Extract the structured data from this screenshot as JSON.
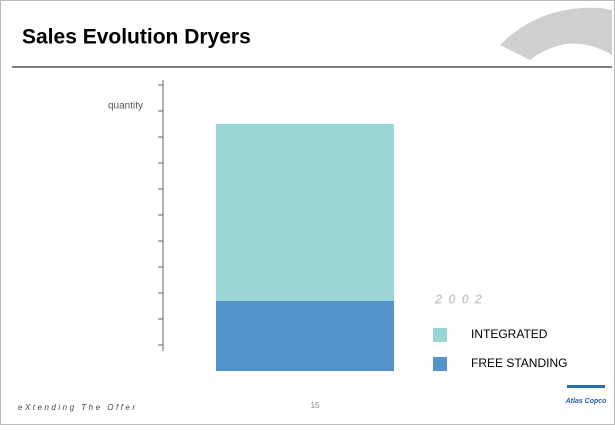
{
  "header": {
    "title": "Sales Evolution Dryers"
  },
  "chart_data": {
    "type": "stacked-bar",
    "ylabel": "quantity",
    "categories": [
      "2002"
    ],
    "series": [
      {
        "name": "INTEGRATED",
        "color": "#99d5d5",
        "values": [
          6.8
        ]
      },
      {
        "name": "FREE STANDING",
        "color": "#5592cc",
        "values": [
          2.7
        ]
      }
    ],
    "ylim": [
      0,
      11
    ],
    "yticks": [
      1,
      2,
      3,
      4,
      5,
      6,
      7,
      8,
      9,
      10,
      11
    ]
  },
  "footer": {
    "tagline": "eXtending The Offer",
    "page": "15",
    "logo": "Atlas Copco"
  }
}
